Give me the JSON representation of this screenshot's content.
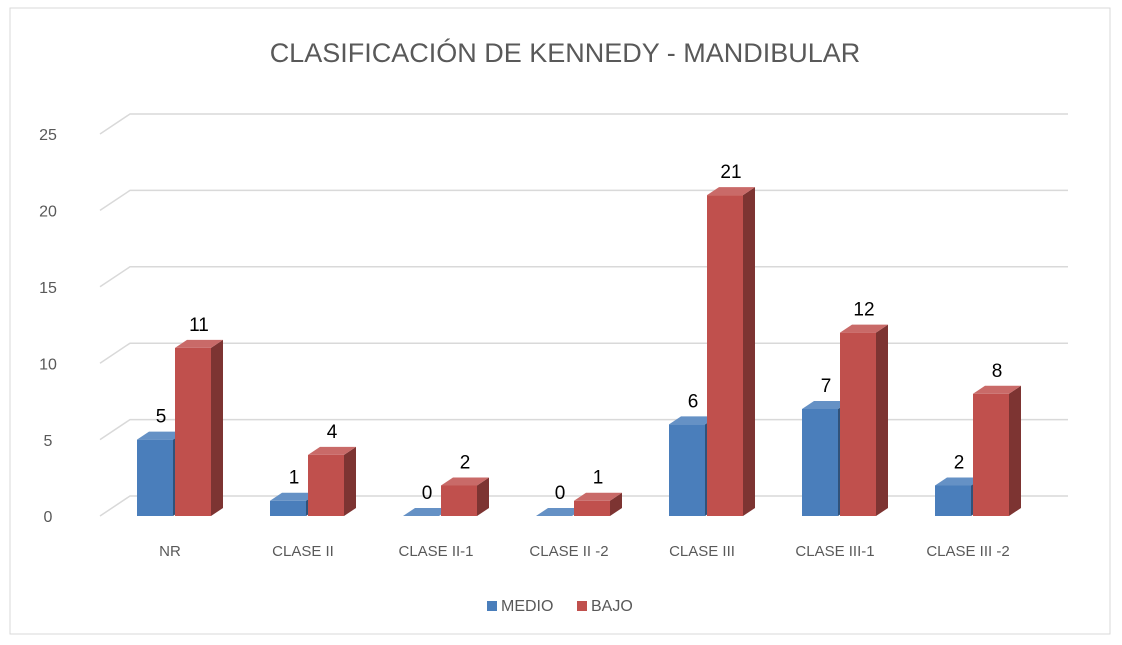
{
  "chart_data": {
    "type": "bar3d",
    "title": "CLASIFICACIÓN  DE KENNEDY - MANDIBULAR",
    "categories": [
      "NR",
      "CLASE II",
      "CLASE II-1",
      "CLASE II -2",
      "CLASE III",
      "CLASE III-1",
      "CLASE III -2"
    ],
    "series": [
      {
        "name": "MEDIO",
        "color": "#4a7ebb",
        "values": [
          5,
          1,
          0,
          0,
          6,
          7,
          2
        ]
      },
      {
        "name": "BAJO",
        "color": "#c0504d",
        "values": [
          11,
          4,
          2,
          1,
          21,
          12,
          8
        ]
      }
    ],
    "ylim": [
      0,
      25
    ],
    "yticks": [
      0,
      5,
      10,
      15,
      20,
      25
    ],
    "grid": true,
    "legend": "bottom"
  }
}
